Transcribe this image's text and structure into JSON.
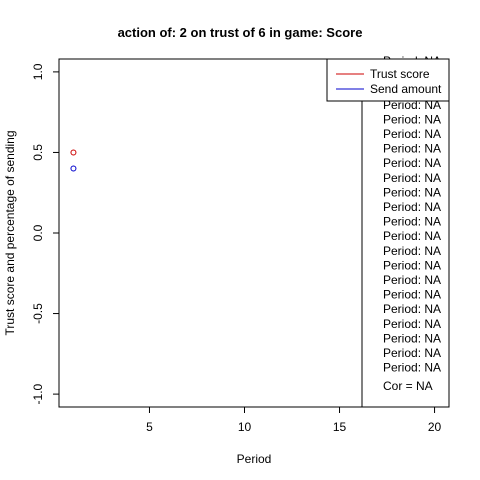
{
  "chart_data": {
    "type": "scatter",
    "title": "action of:  2  on trust of  6 in game:  Score",
    "xlabel": "Period",
    "ylabel": "Trust score and percentage of sending",
    "xlim": [
      0.24,
      20.76
    ],
    "ylim": [
      -1.08,
      1.08
    ],
    "x_ticks": [
      5,
      10,
      15,
      20
    ],
    "y_ticks": [
      -1.0,
      -0.5,
      0.0,
      0.5,
      1.0
    ],
    "x_tick_labels": [
      "5",
      "10",
      "15",
      "20"
    ],
    "y_tick_labels": [
      "-1.0",
      "-0.5",
      "0.0",
      "0.5",
      "1.0"
    ],
    "grid": false,
    "legend_position": "top-right",
    "series": [
      {
        "name": "Trust score",
        "color": "#cc0000",
        "points": [
          {
            "x": 1,
            "y": 0.5
          }
        ]
      },
      {
        "name": "Send amount",
        "color": "#0000cc",
        "points": [
          {
            "x": 1,
            "y": 0.4
          }
        ]
      }
    ],
    "info_box": {
      "lines": [
        "Period:  NA",
        "Period:  NA",
        "Period:  NA",
        "Period:  NA",
        "Period:  NA",
        "Period:  NA",
        "Period:  NA",
        "Period:  NA",
        "Period:  NA",
        "Period:  NA",
        "Period:  NA",
        "Period:  NA",
        "Period:  NA",
        "Period:  NA",
        "Period:  NA",
        "Period:  NA",
        "Period:  NA",
        "Period:  NA",
        "Period:  NA",
        "Period:  NA",
        "Period:  NA",
        "Period:  NA"
      ],
      "footer": "Cor =  NA"
    }
  }
}
